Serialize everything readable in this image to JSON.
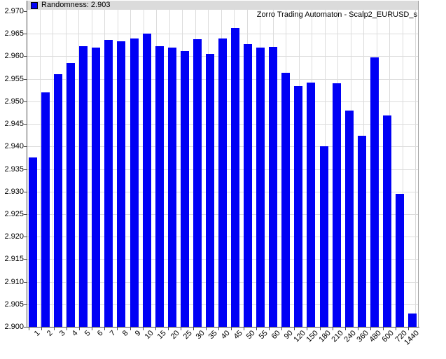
{
  "legend": {
    "label": "Randomness: 2.903"
  },
  "header": {
    "title": "Zorro Trading Automaton - Scalp2_EURUSD_s"
  },
  "colors": {
    "bar": "#0000F5",
    "legend_strip_bg": "#DBDBDB",
    "gridline": "#DCDCDC",
    "axis_dark": "#4a4a4a",
    "border_gray": "#9a9a9a",
    "text": "#000000",
    "plot_bg": "#ffffff"
  },
  "chart_data": {
    "type": "bar",
    "title": "Zorro Trading Automaton - Scalp2_EURUSD_s",
    "legend_entry": "Randomness: 2.903",
    "legend_position": "top-left",
    "grid": true,
    "categories": [
      "1",
      "2",
      "3",
      "4",
      "5",
      "6",
      "7",
      "8",
      "9",
      "10",
      "15",
      "20",
      "25",
      "30",
      "35",
      "40",
      "45",
      "50",
      "55",
      "60",
      "90",
      "120",
      "150",
      "180",
      "210",
      "240",
      "360",
      "480",
      "600",
      "720",
      "1440"
    ],
    "values": [
      2.9375,
      2.952,
      2.956,
      2.9585,
      2.9622,
      2.9619,
      2.9636,
      2.9634,
      2.964,
      2.965,
      2.9622,
      2.9619,
      2.9611,
      2.9638,
      2.9605,
      2.9639,
      2.9663,
      2.9627,
      2.962,
      2.9621,
      2.9564,
      2.9534,
      2.9542,
      2.94,
      2.954,
      2.948,
      2.9424,
      2.9597,
      2.9468,
      2.9295,
      2.903
    ],
    "xlabel": "",
    "ylabel": "",
    "ylim": [
      2.9,
      2.97
    ],
    "ytick_step": 0.005
  }
}
